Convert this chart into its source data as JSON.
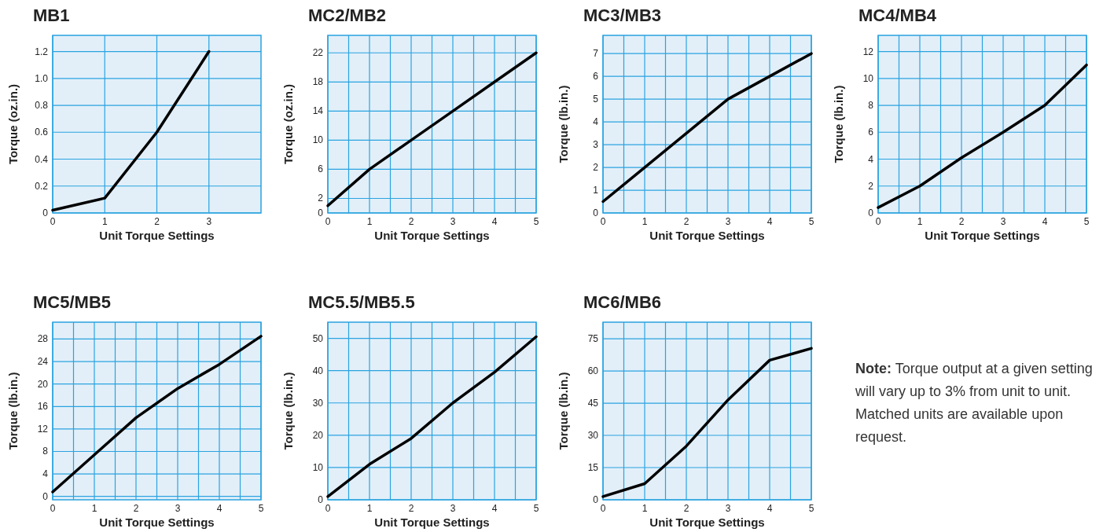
{
  "chart_data": [
    {
      "type": "line",
      "title": "MB1",
      "xlabel": "Unit Torque Settings",
      "ylabel": "Torque (oz.in.)",
      "x": [
        0,
        1,
        2,
        3
      ],
      "xlim": [
        0,
        4
      ],
      "xticks": [
        0,
        1,
        2,
        3
      ],
      "ylim": [
        0,
        1.32
      ],
      "yticks": [
        0,
        0.2,
        0.4,
        0.6,
        0.8,
        {
          "value": 1.0,
          "label": "1.0"
        },
        1.2
      ],
      "grid": true,
      "series": [
        {
          "color": "#000000",
          "values": [
            0.02,
            0.11,
            0.6,
            1.2
          ]
        }
      ]
    },
    {
      "type": "line",
      "title": "MC2/MB2",
      "xlabel": "Unit Torque Settings",
      "ylabel": "Torque (oz.in.)",
      "x": [
        0,
        1,
        2,
        3,
        4,
        5
      ],
      "xlim": [
        0,
        5
      ],
      "xticks": [
        0,
        {
          "value": 0.5,
          "label": null
        },
        1,
        {
          "value": 1.5,
          "label": null
        },
        2,
        {
          "value": 2.5,
          "label": null
        },
        3,
        {
          "value": 3.5,
          "label": null
        },
        4,
        {
          "value": 4.5,
          "label": null
        },
        5
      ],
      "ylim": [
        0,
        24.4
      ],
      "yticks": [
        0,
        2,
        6,
        10,
        14,
        18,
        22
      ],
      "grid": true,
      "series": [
        {
          "color": "#000000",
          "values": [
            1,
            6,
            10,
            14,
            18,
            22
          ]
        }
      ]
    },
    {
      "type": "line",
      "title": "MC3/MB3",
      "xlabel": "Unit Torque Settings",
      "ylabel": "Torque (lb.in.)",
      "x": [
        0,
        1,
        2,
        3,
        4,
        5
      ],
      "xlim": [
        0,
        5
      ],
      "xticks": [
        0,
        {
          "value": 0.5,
          "label": null
        },
        1,
        {
          "value": 1.5,
          "label": null
        },
        2,
        {
          "value": 2.5,
          "label": null
        },
        3,
        {
          "value": 3.5,
          "label": null
        },
        4,
        {
          "value": 4.5,
          "label": null
        },
        5
      ],
      "ylim": [
        0,
        7.8
      ],
      "yticks": [
        0,
        1,
        2,
        3,
        4,
        5,
        6,
        7
      ],
      "grid": true,
      "series": [
        {
          "color": "#000000",
          "values": [
            0.5,
            2,
            3.5,
            5,
            6,
            7
          ]
        }
      ]
    },
    {
      "type": "line",
      "title": "MC4/MB4",
      "xlabel": "Unit Torque Settings",
      "ylabel": "Torque (lb.in.)",
      "x": [
        0,
        1,
        2,
        3,
        4,
        5
      ],
      "xlim": [
        0,
        5
      ],
      "xticks": [
        0,
        {
          "value": 0.5,
          "label": null
        },
        1,
        {
          "value": 1.5,
          "label": null
        },
        2,
        {
          "value": 2.5,
          "label": null
        },
        3,
        {
          "value": 3.5,
          "label": null
        },
        4,
        {
          "value": 4.5,
          "label": null
        },
        5
      ],
      "ylim": [
        0,
        13.2
      ],
      "yticks": [
        0,
        2,
        4,
        6,
        8,
        10,
        12
      ],
      "grid": true,
      "series": [
        {
          "color": "#000000",
          "values": [
            0.4,
            2,
            4.1,
            6,
            8,
            11
          ]
        }
      ]
    },
    {
      "type": "line",
      "title": "MC5/MB5",
      "xlabel": "Unit Torque Settings",
      "ylabel": "Torque (lb.in.)",
      "x": [
        0,
        1,
        2,
        3,
        4,
        5
      ],
      "xlim": [
        0,
        5
      ],
      "xticks": [
        0,
        {
          "value": 0.5,
          "label": null
        },
        1,
        {
          "value": 1.5,
          "label": null
        },
        2,
        {
          "value": 2.5,
          "label": null
        },
        3,
        {
          "value": 3.5,
          "label": null
        },
        4,
        {
          "value": 4.5,
          "label": null
        },
        5
      ],
      "ylim": [
        -0.6,
        31
      ],
      "yticks": [
        0,
        4,
        8,
        12,
        16,
        20,
        24,
        28
      ],
      "grid": true,
      "series": [
        {
          "color": "#000000",
          "values": [
            0.8,
            7.4,
            14,
            19.2,
            23.5,
            28.5
          ]
        }
      ]
    },
    {
      "type": "line",
      "title": "MC5.5/MB5.5",
      "xlabel": "Unit Torque Settings",
      "ylabel": "Torque (lb.in.)",
      "x": [
        0,
        1,
        2,
        3,
        4,
        5
      ],
      "xlim": [
        0,
        5
      ],
      "xticks": [
        0,
        {
          "value": 0.5,
          "label": null
        },
        1,
        {
          "value": 1.5,
          "label": null
        },
        2,
        {
          "value": 2.5,
          "label": null
        },
        3,
        {
          "value": 3.5,
          "label": null
        },
        4,
        {
          "value": 4.5,
          "label": null
        },
        5
      ],
      "ylim": [
        0,
        55
      ],
      "yticks": [
        0,
        10,
        20,
        30,
        40,
        50
      ],
      "grid": true,
      "series": [
        {
          "color": "#000000",
          "values": [
            1,
            11,
            19,
            30,
            39.5,
            50.5
          ]
        }
      ]
    },
    {
      "type": "line",
      "title": "MC6/MB6",
      "xlabel": "Unit Torque Settings",
      "ylabel": "Torque (lb.in.)",
      "x": [
        0,
        1,
        2,
        3,
        4,
        5
      ],
      "xlim": [
        0,
        5
      ],
      "xticks": [
        0,
        {
          "value": 0.5,
          "label": null
        },
        1,
        {
          "value": 1.5,
          "label": null
        },
        2,
        {
          "value": 2.5,
          "label": null
        },
        3,
        {
          "value": 3.5,
          "label": null
        },
        4,
        {
          "value": 4.5,
          "label": null
        },
        5
      ],
      "ylim": [
        0,
        82.7
      ],
      "yticks": [
        0,
        15,
        30,
        45,
        60,
        75
      ],
      "grid": true,
      "series": [
        {
          "color": "#000000",
          "values": [
            1.5,
            7.5,
            25,
            46.5,
            65,
            70.5
          ]
        }
      ]
    },
    {
      "type": "other",
      "annotations": [
        "Note: Torque output at a given setting will vary up to 3% from unit to unit. Matched units are available upon request."
      ]
    }
  ]
}
